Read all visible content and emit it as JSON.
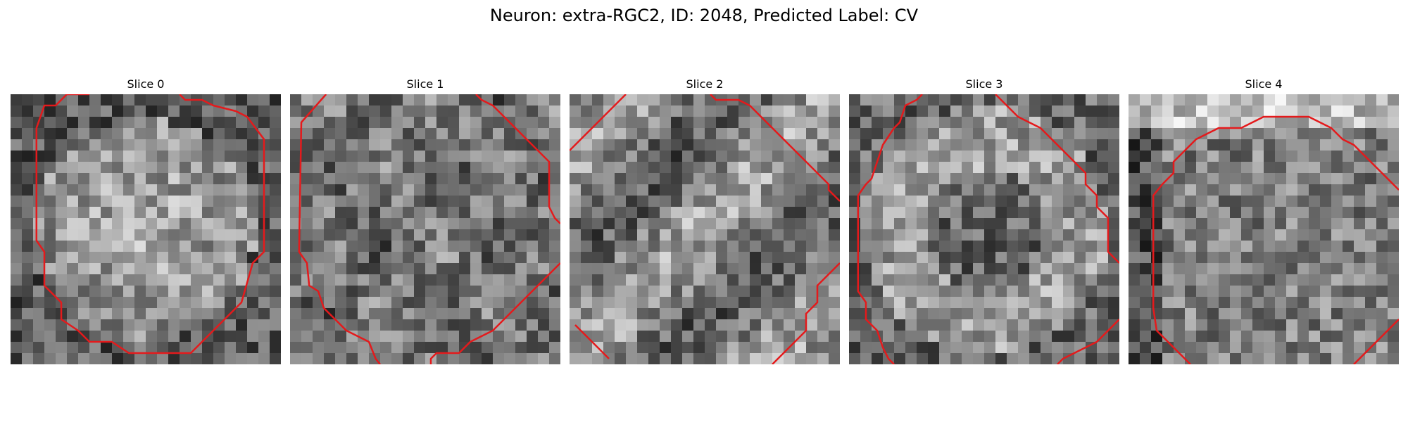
{
  "figure": {
    "title": "Neuron: extra-RGC2, ID: 2048, Predicted Label: CV",
    "grid_size": 24,
    "outline_color": "#e41a1c"
  },
  "panels": [
    {
      "title": "Slice 0",
      "seed": 11,
      "tone": "bright-center",
      "contours": [
        [
          [
            7,
            0
          ],
          [
            5,
            0
          ],
          [
            4,
            1
          ],
          [
            3,
            1
          ],
          [
            2.3,
            3
          ],
          [
            2.3,
            13
          ],
          [
            3,
            14
          ],
          [
            3,
            17
          ],
          [
            4.5,
            18.5
          ],
          [
            4.5,
            20
          ],
          [
            6,
            21
          ],
          [
            7,
            22
          ],
          [
            9,
            22
          ],
          [
            10.5,
            23
          ],
          [
            16,
            23
          ],
          [
            17,
            22
          ],
          [
            18,
            21
          ],
          [
            19,
            20
          ],
          [
            20.5,
            18.5
          ],
          [
            21.5,
            15
          ],
          [
            22.5,
            14
          ],
          [
            22.5,
            4
          ],
          [
            21,
            2
          ],
          [
            20,
            1.5
          ],
          [
            18,
            1
          ],
          [
            17,
            0.5
          ],
          [
            15.5,
            0.5
          ],
          [
            15,
            0
          ]
        ]
      ]
    },
    {
      "title": "Slice 1",
      "seed": 29,
      "tone": "dark-center",
      "contours": [
        [
          [
            3.2,
            0
          ],
          [
            1,
            2.5
          ],
          [
            0.8,
            14
          ],
          [
            1.5,
            15
          ],
          [
            1.7,
            17
          ],
          [
            2.5,
            17.5
          ],
          [
            3,
            19
          ],
          [
            4,
            20
          ],
          [
            5,
            21
          ],
          [
            6,
            21.5
          ],
          [
            7,
            22
          ],
          [
            7.6,
            23.5
          ],
          [
            8,
            24
          ]
        ],
        [
          [
            12.5,
            24
          ],
          [
            12.5,
            23.5
          ],
          [
            13,
            23
          ],
          [
            15,
            23
          ],
          [
            16,
            22
          ],
          [
            17,
            21.5
          ],
          [
            18,
            21
          ],
          [
            19,
            20
          ],
          [
            20,
            19
          ],
          [
            21,
            18
          ],
          [
            22,
            17
          ],
          [
            23,
            16
          ],
          [
            24,
            15
          ]
        ],
        [
          [
            16.5,
            0
          ],
          [
            17,
            0.5
          ],
          [
            18,
            1
          ],
          [
            19,
            2
          ],
          [
            20,
            3
          ],
          [
            21,
            4
          ],
          [
            22,
            5
          ],
          [
            23,
            6
          ],
          [
            23,
            10
          ],
          [
            23.5,
            11
          ],
          [
            24,
            11.5
          ]
        ]
      ]
    },
    {
      "title": "Slice 2",
      "seed": 47,
      "tone": "mixed",
      "contours": [
        [
          [
            0,
            5
          ],
          [
            1,
            4
          ],
          [
            2,
            3
          ],
          [
            3,
            2
          ],
          [
            4,
            1
          ],
          [
            5,
            0
          ]
        ],
        [
          [
            12.5,
            0
          ],
          [
            13,
            0.5
          ],
          [
            15,
            0.5
          ],
          [
            16,
            1
          ],
          [
            17,
            2
          ],
          [
            18,
            3
          ],
          [
            19,
            4
          ],
          [
            20,
            5
          ],
          [
            21,
            6
          ],
          [
            22,
            7
          ],
          [
            23,
            8
          ],
          [
            23,
            8.5
          ],
          [
            24,
            9.5
          ]
        ],
        [
          [
            0.5,
            20.5
          ],
          [
            1.5,
            21.5
          ],
          [
            2.5,
            22.5
          ],
          [
            3.5,
            23.5
          ]
        ],
        [
          [
            24,
            15
          ],
          [
            23,
            16
          ],
          [
            22,
            17
          ],
          [
            22,
            18.5
          ],
          [
            21,
            19.5
          ],
          [
            21,
            21
          ],
          [
            20,
            22
          ],
          [
            19,
            23
          ],
          [
            18,
            24
          ]
        ]
      ]
    },
    {
      "title": "Slice 3",
      "seed": 63,
      "tone": "bright-ring",
      "contours": [
        [
          [
            6.5,
            0
          ],
          [
            6,
            0.5
          ],
          [
            5,
            1
          ],
          [
            4.5,
            2.5
          ],
          [
            4,
            3
          ],
          [
            3,
            4.5
          ],
          [
            2.5,
            6
          ],
          [
            2,
            7.5
          ],
          [
            1.5,
            8
          ],
          [
            0.8,
            9
          ],
          [
            0.8,
            17.5
          ],
          [
            1.5,
            18.5
          ],
          [
            1.5,
            20
          ],
          [
            2.5,
            21
          ],
          [
            3,
            22.5
          ],
          [
            3.5,
            23.5
          ],
          [
            4,
            24
          ]
        ],
        [
          [
            13,
            0
          ],
          [
            14,
            1
          ],
          [
            15,
            2
          ],
          [
            16,
            2.5
          ],
          [
            17,
            3
          ],
          [
            18,
            4
          ],
          [
            19,
            5
          ],
          [
            20,
            6
          ],
          [
            21,
            7
          ],
          [
            21,
            8
          ],
          [
            22,
            9
          ],
          [
            22,
            10
          ],
          [
            23,
            11
          ],
          [
            23,
            14
          ],
          [
            24,
            15
          ]
        ],
        [
          [
            18.5,
            24
          ],
          [
            19,
            23.5
          ],
          [
            20,
            23
          ],
          [
            21,
            22.5
          ],
          [
            22,
            22
          ],
          [
            23,
            21
          ],
          [
            24,
            20
          ]
        ]
      ]
    },
    {
      "title": "Slice 4",
      "seed": 81,
      "tone": "bright-top",
      "contours": [
        [
          [
            5.5,
            24
          ],
          [
            5,
            23.5
          ],
          [
            4,
            22.5
          ],
          [
            3,
            21.5
          ],
          [
            2.5,
            21
          ],
          [
            2.2,
            19
          ],
          [
            2.2,
            9
          ],
          [
            3,
            8
          ],
          [
            4,
            7
          ],
          [
            4,
            6
          ],
          [
            5,
            5
          ],
          [
            6,
            4
          ],
          [
            7,
            3.5
          ],
          [
            8,
            3
          ],
          [
            10,
            3
          ],
          [
            11,
            2.5
          ],
          [
            12,
            2
          ],
          [
            16,
            2
          ],
          [
            17,
            2.5
          ],
          [
            18,
            3
          ],
          [
            19,
            4
          ],
          [
            20,
            4.5
          ],
          [
            21,
            5.5
          ],
          [
            22,
            6.5
          ],
          [
            23,
            7.5
          ],
          [
            24,
            8.5
          ]
        ],
        [
          [
            20,
            24
          ],
          [
            21,
            23
          ],
          [
            22,
            22
          ],
          [
            23,
            21
          ],
          [
            24,
            20
          ]
        ]
      ]
    }
  ]
}
